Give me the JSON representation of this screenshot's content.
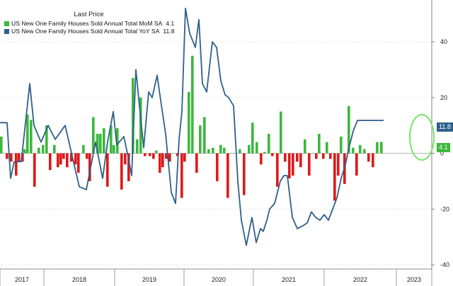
{
  "chart_data": {
    "type": "bar+line",
    "legend_title": "Last Price",
    "x_labels": [
      "2017",
      "2018",
      "2019",
      "2020",
      "2021",
      "2022",
      "2023"
    ],
    "ylim": [
      -41,
      55
    ],
    "y_ticks": [
      -40,
      -20,
      0,
      20,
      40
    ],
    "colors": {
      "mom_pos": "#3cb83c",
      "mom_neg": "#e01818",
      "yoy_line": "#2f5f8a",
      "highlight": "#7de070"
    },
    "series": [
      {
        "name": "US New One Family Houses Sold Annual Total MoM SA",
        "last_value": "4.1",
        "kind": "bar",
        "values": [
          6,
          -2,
          -3,
          -8,
          -3,
          -3,
          1.5,
          14,
          12,
          -12,
          2,
          3,
          10,
          -6,
          3,
          -5,
          -4,
          -2,
          -5,
          -3,
          -4,
          -7,
          3,
          -2,
          -10,
          13,
          7,
          7,
          9,
          -12,
          10,
          3,
          9,
          -13,
          -4,
          -10,
          27,
          5,
          20,
          -1,
          -1,
          -2,
          1,
          -7,
          -5,
          -2,
          -3,
          0,
          -1,
          -16,
          -3,
          22,
          35,
          -7,
          10,
          13,
          1.5,
          2,
          -10,
          3,
          2,
          -16,
          0,
          0,
          1.5,
          -15,
          3,
          11,
          4,
          -4,
          0.5,
          7,
          -1,
          -12,
          15,
          -3,
          -9,
          -8,
          -3,
          -5,
          5,
          -8,
          0,
          -2,
          7,
          -2,
          4,
          -2,
          -17,
          -8,
          6,
          -11,
          17,
          2,
          -8,
          3,
          1.5,
          -3,
          -5,
          4,
          4.1
        ],
        "positions": [
          0,
          8,
          14,
          21,
          25,
          30,
          33,
          37,
          42,
          47,
          53,
          59,
          64,
          69,
          75,
          80,
          84,
          88,
          93,
          99,
          105,
          109,
          116,
          121,
          125,
          130,
          136,
          140,
          145,
          150,
          155,
          159,
          164,
          170,
          175,
          180,
          186,
          192,
          197,
          203,
          210,
          215,
          219,
          224,
          228,
          233,
          238,
          244,
          249,
          255,
          259,
          265,
          270,
          276,
          281,
          287,
          293,
          299,
          305,
          310,
          315,
          320,
          325,
          330,
          337,
          343,
          350,
          355,
          361,
          367,
          372,
          378,
          383,
          390,
          395,
          401,
          407,
          412,
          418,
          423,
          429,
          435,
          440,
          445,
          449,
          455,
          460,
          465,
          471,
          476,
          480,
          485,
          491,
          497,
          502,
          507,
          513,
          519,
          525,
          531,
          537
        ]
      },
      {
        "name": "US New One Family Houses Sold Annual Total YoY SA",
        "last_value": "11.8",
        "kind": "line",
        "x": [
          0,
          10,
          15,
          20,
          30,
          42,
          48,
          58,
          68,
          78,
          92,
          102,
          112,
          122,
          135,
          145,
          152,
          160,
          165,
          175,
          180,
          186,
          192,
          197,
          203,
          210,
          215,
          222,
          227,
          234,
          242,
          248,
          253,
          257,
          262,
          268,
          276,
          281,
          286,
          292,
          300,
          306,
          312,
          318,
          323,
          330,
          336,
          341,
          348,
          356,
          362,
          368,
          372,
          377,
          381,
          388,
          396,
          401,
          406,
          413,
          420,
          428,
          434,
          440,
          446,
          452,
          458,
          464,
          470,
          476,
          482,
          488,
          493,
          499,
          505,
          511,
          517,
          523,
          529,
          535,
          542
        ],
        "values": [
          11,
          11,
          -9,
          -3,
          -3,
          25,
          10,
          4,
          10,
          5,
          10,
          -1,
          -12,
          -13,
          4,
          -9,
          4,
          15,
          3,
          6,
          0,
          -8,
          30,
          17,
          2,
          22,
          20,
          28,
          19,
          7,
          -14,
          -18,
          5,
          15,
          52,
          43,
          38,
          48,
          25,
          22,
          40,
          38,
          26,
          21,
          20,
          17,
          -10,
          -24,
          -33,
          -23,
          -32,
          -27,
          -28,
          -24,
          -20,
          -18,
          -10,
          -8,
          -8,
          -23,
          -27,
          -26,
          -25,
          -21,
          -23,
          -24,
          -22,
          -24,
          -20,
          -16,
          -9,
          -4,
          2,
          8,
          11.8,
          11.8,
          11.8,
          11.8,
          11.8,
          11.8,
          11.8
        ]
      }
    ]
  }
}
